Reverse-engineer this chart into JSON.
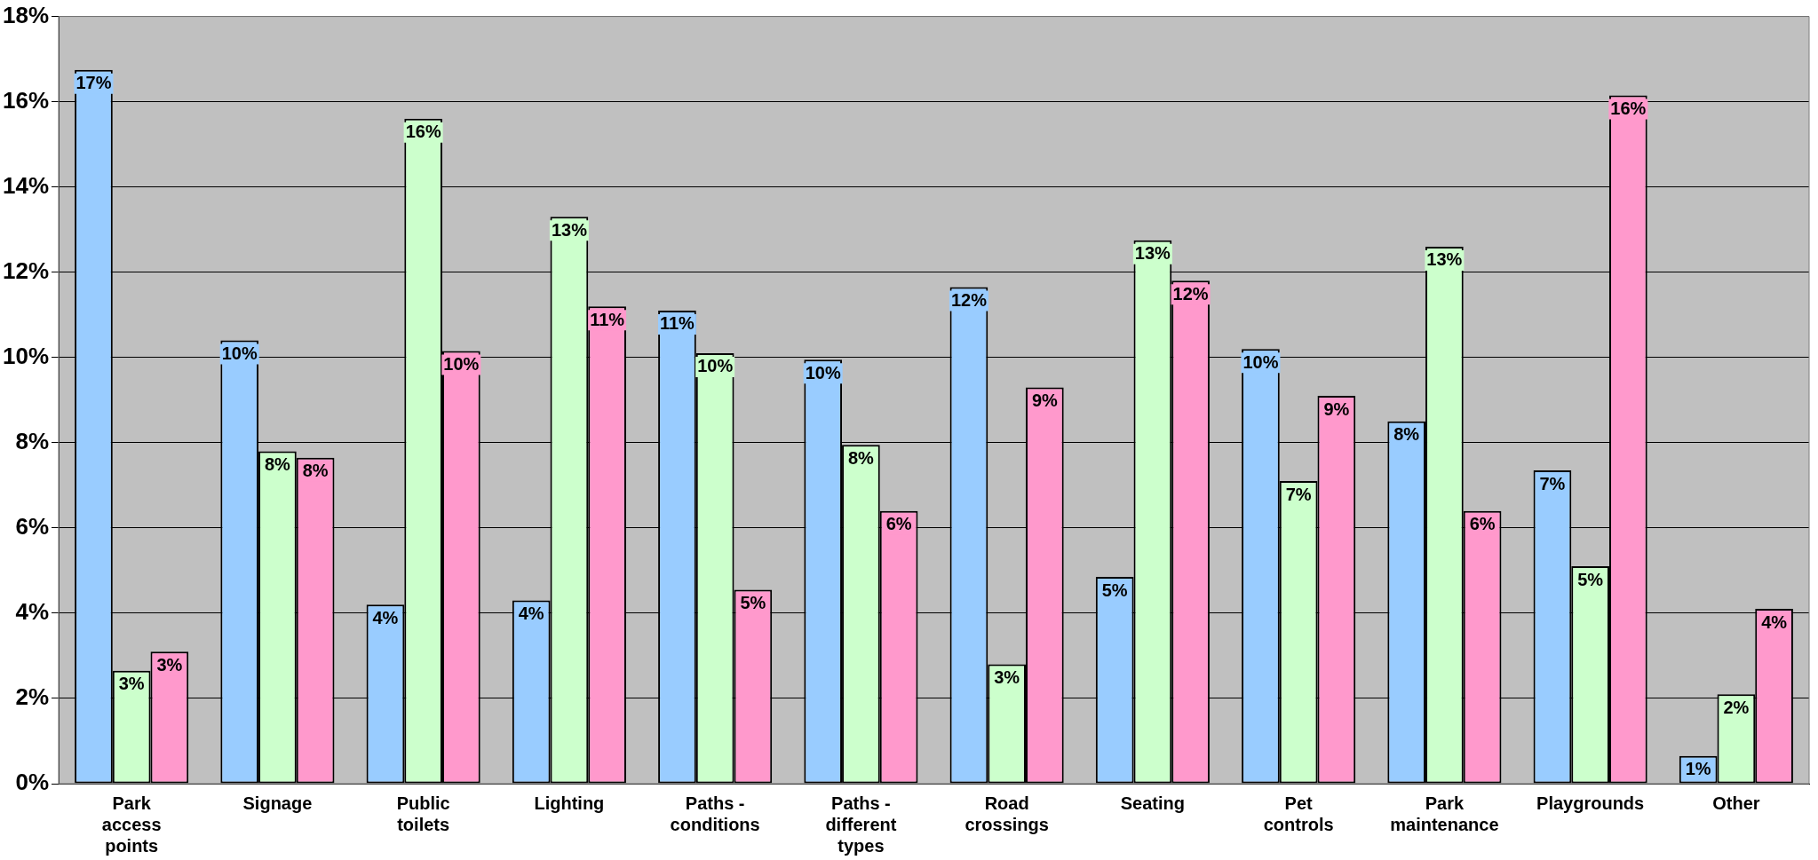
{
  "chart_data": {
    "type": "bar",
    "categories": [
      "Park access points",
      "Signage",
      "Public toilets",
      "Lighting",
      "Paths - conditions",
      "Paths - different types",
      "Road crossings",
      "Seating",
      "Pet controls",
      "Park maintenance",
      "Playgrounds",
      "Other"
    ],
    "series": [
      {
        "color": "#99ccff",
        "values": [
          16.75,
          10.4,
          4.2,
          4.3,
          11.1,
          9.95,
          11.65,
          4.85,
          10.2,
          8.5,
          7.35,
          0.65
        ],
        "value_labels": [
          "17%",
          "10%",
          "4%",
          "4%",
          "11%",
          "10%",
          "12%",
          "5%",
          "10%",
          "8%",
          "7%",
          "1%"
        ]
      },
      {
        "color": "#ccffcc",
        "values": [
          2.65,
          7.8,
          15.6,
          13.3,
          10.1,
          7.95,
          2.8,
          12.75,
          7.1,
          12.6,
          5.1,
          2.1
        ],
        "value_labels": [
          "3%",
          "8%",
          "16%",
          "13%",
          "10%",
          "8%",
          "3%",
          "13%",
          "7%",
          "13%",
          "5%",
          "2%"
        ]
      },
      {
        "color": "#ff99cc",
        "values": [
          3.1,
          7.65,
          10.15,
          11.2,
          4.55,
          6.4,
          9.3,
          11.8,
          9.1,
          6.4,
          16.15,
          4.1
        ],
        "value_labels": [
          "3%",
          "8%",
          "10%",
          "11%",
          "5%",
          "6%",
          "9%",
          "12%",
          "9%",
          "6%",
          "16%",
          "4%"
        ]
      }
    ],
    "ylim": [
      0,
      18
    ],
    "yticks": [
      {
        "value": 0,
        "label": "0%"
      },
      {
        "value": 2,
        "label": "2%"
      },
      {
        "value": 4,
        "label": "4%"
      },
      {
        "value": 6,
        "label": "6%"
      },
      {
        "value": 8,
        "label": "8%"
      },
      {
        "value": 10,
        "label": "10%"
      },
      {
        "value": 12,
        "label": "12%"
      },
      {
        "value": 14,
        "label": "14%"
      },
      {
        "value": 16,
        "label": "16%"
      },
      {
        "value": 18,
        "label": "18%"
      }
    ],
    "grid": "y",
    "legend": false
  }
}
